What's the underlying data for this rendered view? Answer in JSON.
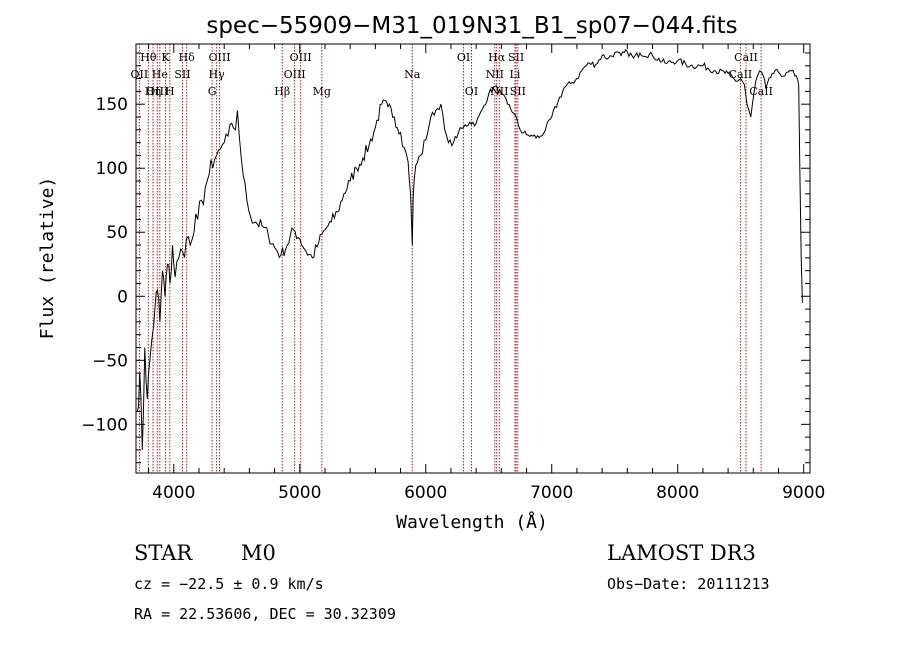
{
  "chart_data": {
    "type": "line",
    "title": "spec−55909−M31_019N31_B1_sp07−044.fits",
    "xlabel": "Wavelength (Å)",
    "ylabel": "Flux (relative)",
    "xlim": [
      3700,
      9050
    ],
    "ylim": [
      -138,
      197
    ],
    "xticks": [
      4000,
      5000,
      6000,
      7000,
      8000,
      9000
    ],
    "yticks": [
      -100,
      -50,
      0,
      50,
      100,
      150
    ],
    "ytick_labels": [
      "−100",
      "−50",
      "0",
      "50",
      "100",
      "150"
    ],
    "line_color": "#b22222",
    "series": [
      {
        "name": "spectrum",
        "x": [
          3710,
          3730,
          3750,
          3770,
          3790,
          3810,
          3830,
          3850,
          3870,
          3890,
          3910,
          3930,
          3950,
          3970,
          3990,
          4010,
          4040,
          4070,
          4100,
          4130,
          4160,
          4190,
          4220,
          4250,
          4280,
          4310,
          4340,
          4370,
          4400,
          4430,
          4460,
          4490,
          4505,
          4520,
          4550,
          4580,
          4610,
          4650,
          4700,
          4750,
          4800,
          4850,
          4900,
          4950,
          5000,
          5050,
          5100,
          5150,
          5200,
          5250,
          5300,
          5350,
          5400,
          5450,
          5500,
          5550,
          5600,
          5650,
          5700,
          5750,
          5800,
          5830,
          5860,
          5880,
          5893,
          5900,
          5920,
          5960,
          6000,
          6040,
          6080,
          6120,
          6150,
          6180,
          6220,
          6260,
          6300,
          6350,
          6400,
          6450,
          6500,
          6550,
          6600,
          6650,
          6700,
          6750,
          6800,
          6850,
          6900,
          6950,
          7000,
          7050,
          7100,
          7150,
          7200,
          7250,
          7300,
          7350,
          7400,
          7450,
          7500,
          7550,
          7600,
          7650,
          7700,
          7800,
          7900,
          8000,
          8100,
          8200,
          8300,
          8400,
          8460,
          8500,
          8530,
          8550,
          8580,
          8620,
          8650,
          8680,
          8700,
          8750,
          8800,
          8850,
          8900,
          8930,
          8950,
          8960,
          8980,
          8990
        ],
        "y": [
          -90,
          -60,
          -120,
          -40,
          -80,
          -50,
          -30,
          -10,
          5,
          -20,
          20,
          0,
          25,
          10,
          40,
          15,
          30,
          35,
          45,
          40,
          50,
          60,
          75,
          85,
          95,
          100,
          110,
          115,
          120,
          125,
          135,
          130,
          145,
          125,
          95,
          75,
          62,
          58,
          55,
          48,
          38,
          32,
          40,
          52,
          45,
          35,
          30,
          42,
          52,
          58,
          66,
          80,
          90,
          100,
          108,
          118,
          132,
          150,
          148,
          140,
          128,
          116,
          105,
          80,
          40,
          78,
          102,
          110,
          122,
          140,
          145,
          150,
          130,
          120,
          120,
          128,
          132,
          136,
          135,
          146,
          158,
          164,
          158,
          150,
          143,
          130,
          126,
          125,
          124,
          130,
          140,
          152,
          163,
          166,
          170,
          178,
          182,
          181,
          188,
          186,
          190,
          188,
          191,
          186,
          190,
          188,
          182,
          184,
          180,
          180,
          176,
          174,
          168,
          170,
          165,
          150,
          140,
          168,
          176,
          172,
          162,
          174,
          175,
          172,
          176,
          172,
          170,
          165,
          30,
          -5
        ]
      }
    ],
    "emission_lines": [
      {
        "name": "Hθ",
        "wave": 3798,
        "row": 0
      },
      {
        "name": "OII",
        "wave": 3727,
        "row": 1
      },
      {
        "name": "OIII",
        "wave": 3869,
        "row": 2
      },
      {
        "name": "K",
        "wave": 3934,
        "row": 0
      },
      {
        "name": "He",
        "wave": 3889,
        "row": 1
      },
      {
        "name": "Hη",
        "wave": 3835,
        "row": 2
      },
      {
        "name": "Hδ",
        "wave": 4102,
        "row": 0
      },
      {
        "name": "SII",
        "wave": 4069,
        "row": 1
      },
      {
        "name": "H",
        "wave": 3968,
        "row": 2
      },
      {
        "name": "OIII",
        "wave": 4363,
        "row": 0
      },
      {
        "name": "Hγ",
        "wave": 4340,
        "row": 1
      },
      {
        "name": "G",
        "wave": 4304,
        "row": 2
      },
      {
        "name": "OIII",
        "wave": 5007,
        "row": 0
      },
      {
        "name": "OIII",
        "wave": 4959,
        "row": 1
      },
      {
        "name": "Hβ",
        "wave": 4861,
        "row": 2
      },
      {
        "name": "Mg",
        "wave": 5175,
        "row": 2
      },
      {
        "name": "Na",
        "wave": 5893,
        "row": 1
      },
      {
        "name": "OI",
        "wave": 6300,
        "row": 0
      },
      {
        "name": "OI",
        "wave": 6363,
        "row": 2
      },
      {
        "name": "Hα",
        "wave": 6563,
        "row": 0
      },
      {
        "name": "NII",
        "wave": 6548,
        "row": 1
      },
      {
        "name": "NII",
        "wave": 6584,
        "row": 2
      },
      {
        "name": "SII",
        "wave": 6717,
        "row": 0
      },
      {
        "name": "Li",
        "wave": 6708,
        "row": 1
      },
      {
        "name": "SII",
        "wave": 6731,
        "row": 2
      },
      {
        "name": "CaII",
        "wave": 8542,
        "row": 0
      },
      {
        "name": "CaII",
        "wave": 8498,
        "row": 1
      },
      {
        "name": "CaII",
        "wave": 8662,
        "row": 2
      }
    ]
  },
  "info": {
    "object_class": "STAR",
    "subclass": "M0",
    "survey": "LAMOST DR3",
    "cz": "cz = −22.5 ± 0.9 km/s",
    "obs_date": "Obs−Date: 20111213",
    "coords": "RA =  22.53606, DEC =  30.32309"
  }
}
